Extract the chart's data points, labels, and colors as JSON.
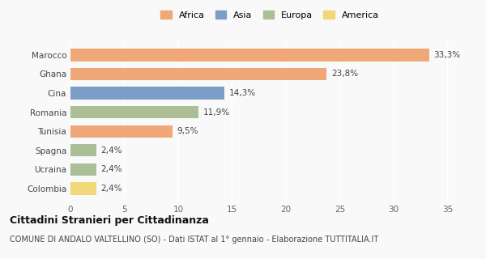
{
  "categories": [
    "Marocco",
    "Ghana",
    "Cina",
    "Romania",
    "Tunisia",
    "Spagna",
    "Ucraina",
    "Colombia"
  ],
  "values": [
    33.3,
    23.8,
    14.3,
    11.9,
    9.5,
    2.4,
    2.4,
    2.4
  ],
  "labels": [
    "33,3%",
    "23,8%",
    "14,3%",
    "11,9%",
    "9,5%",
    "2,4%",
    "2,4%",
    "2,4%"
  ],
  "colors": [
    "#F0A878",
    "#F0A878",
    "#7B9DC8",
    "#ABBE96",
    "#F0A878",
    "#ABBE96",
    "#ABBE96",
    "#F0D878"
  ],
  "continents": [
    "Africa",
    "Africa",
    "Asia",
    "Europa",
    "Africa",
    "Europa",
    "Europa",
    "America"
  ],
  "legend_labels": [
    "Africa",
    "Asia",
    "Europa",
    "America"
  ],
  "legend_colors": [
    "#F0A878",
    "#7B9DC8",
    "#ABBE96",
    "#F0D878"
  ],
  "xlim": [
    0,
    37
  ],
  "xticks": [
    0,
    5,
    10,
    15,
    20,
    25,
    30,
    35
  ],
  "title": "Cittadini Stranieri per Cittadinanza",
  "subtitle": "COMUNE DI ANDALO VALTELLINO (SO) - Dati ISTAT al 1° gennaio - Elaborazione TUTTITALIA.IT",
  "background_color": "#f9f9f9",
  "title_fontsize": 9,
  "subtitle_fontsize": 7,
  "label_fontsize": 7.5,
  "tick_fontsize": 7.5,
  "legend_fontsize": 8
}
